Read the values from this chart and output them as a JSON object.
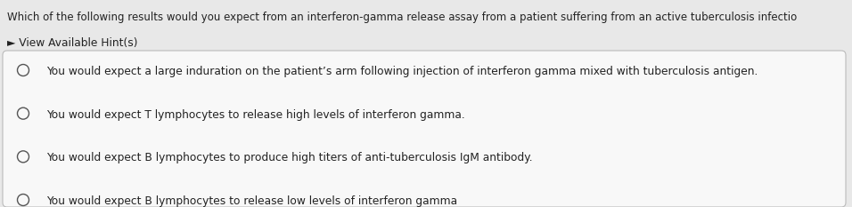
{
  "question": "Which of the following results would you expect from an interferon-gamma release assay from a patient suffering from an active tuberculosis infectio",
  "hint_label": "► View Available Hint(s)",
  "options": [
    "You would expect a large induration on the patient’s arm following injection of interferon gamma mixed with tuberculosis antigen.",
    "You would expect T lymphocytes to release high levels of interferon gamma.",
    "You would expect B lymphocytes to produce high titers of anti-tuberculosis IgM antibody.",
    "You would expect B lymphocytes to release low levels of interferon gamma"
  ],
  "bg_color": "#e8e8e8",
  "box_color": "#f8f8f8",
  "box_border_color": "#bbbbbb",
  "question_fontsize": 8.5,
  "hint_fontsize": 8.8,
  "option_fontsize": 8.8,
  "text_color": "#222222",
  "hint_color": "#222222",
  "fig_width": 9.56,
  "fig_height": 2.33,
  "dpi": 100
}
